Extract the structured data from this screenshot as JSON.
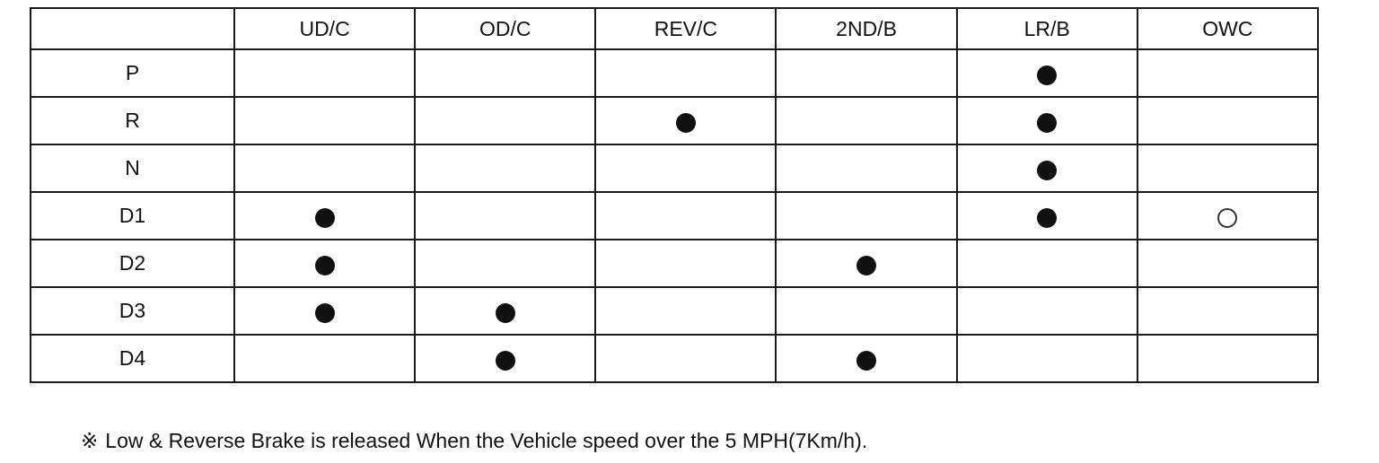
{
  "table": {
    "columns": [
      "",
      "UD/C",
      "OD/C",
      "REV/C",
      "2ND/B",
      "LR/B",
      "OWC"
    ],
    "rows": [
      {
        "label": "P",
        "cells": [
          "",
          "",
          "",
          "",
          "filled",
          ""
        ]
      },
      {
        "label": "R",
        "cells": [
          "",
          "",
          "filled",
          "",
          "filled",
          ""
        ]
      },
      {
        "label": "N",
        "cells": [
          "",
          "",
          "",
          "",
          "filled",
          ""
        ]
      },
      {
        "label": "D1",
        "cells": [
          "filled",
          "",
          "",
          "",
          "filled",
          "open"
        ]
      },
      {
        "label": "D2",
        "cells": [
          "filled",
          "",
          "",
          "filled",
          "",
          ""
        ]
      },
      {
        "label": "D3",
        "cells": [
          "filled",
          "filled",
          "",
          "",
          "",
          ""
        ]
      },
      {
        "label": "D4",
        "cells": [
          "",
          "filled",
          "",
          "filled",
          "",
          ""
        ]
      }
    ],
    "legend_symbols": {
      "filled": "filled-circle",
      "open": "open-circle"
    }
  },
  "note": {
    "symbol": "※",
    "text": "Low & Reverse Brake is released When the Vehicle speed over the 5 MPH(7Km/h)."
  }
}
